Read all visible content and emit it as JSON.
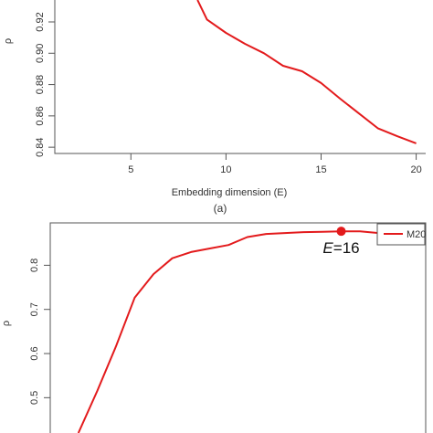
{
  "chart_data": [
    {
      "type": "line",
      "panel_label": "(a)",
      "xlabel": "Embedding dimension (E)",
      "ylabel": "ρ",
      "xlim": [
        1,
        20.5
      ],
      "ylim": [
        0.836,
        0.934
      ],
      "x_ticks": [
        5,
        10,
        15,
        20
      ],
      "x_tick_labels": [
        "5",
        "10",
        "15",
        "20"
      ],
      "y_ticks": [
        0.84,
        0.86,
        0.88,
        0.9,
        0.92
      ],
      "y_tick_labels": [
        "0.84",
        "0.86",
        "0.88",
        "0.90",
        "0.92"
      ],
      "grid": false,
      "series": [
        {
          "color": "#e31a1c",
          "x": [
            8.5,
            9,
            10,
            11,
            12,
            13,
            14,
            15,
            16,
            17,
            18,
            19,
            20
          ],
          "y": [
            0.934,
            0.9215,
            0.913,
            0.906,
            0.9,
            0.892,
            0.8885,
            0.881,
            0.871,
            0.8615,
            0.852,
            0.847,
            0.8425
          ]
        }
      ]
    },
    {
      "type": "line",
      "xlabel": "",
      "ylabel": "ρ",
      "xlim": [
        0.5,
        20.5
      ],
      "ylim": [
        0.42,
        0.896
      ],
      "y_ticks": [
        0.5,
        0.6,
        0.7,
        0.8
      ],
      "y_tick_labels": [
        "0.5",
        "0.6",
        "0.7",
        "0.8"
      ],
      "grid": false,
      "legend_position": "top-right",
      "series": [
        {
          "name": "M20",
          "color": "#e31a1c",
          "x": [
            2,
            3,
            4,
            5,
            6,
            7,
            8,
            9,
            10,
            11,
            12,
            13,
            14,
            15,
            16,
            17,
            18
          ],
          "y": [
            0.42,
            0.515,
            0.616,
            0.727,
            0.78,
            0.816,
            0.83,
            0.838,
            0.846,
            0.864,
            0.871,
            0.873,
            0.875,
            0.876,
            0.877,
            0.877,
            0.873
          ]
        }
      ],
      "highlight": {
        "x": 16,
        "y": 0.877,
        "label_italic": "E",
        "label_rest": "=16"
      }
    }
  ]
}
